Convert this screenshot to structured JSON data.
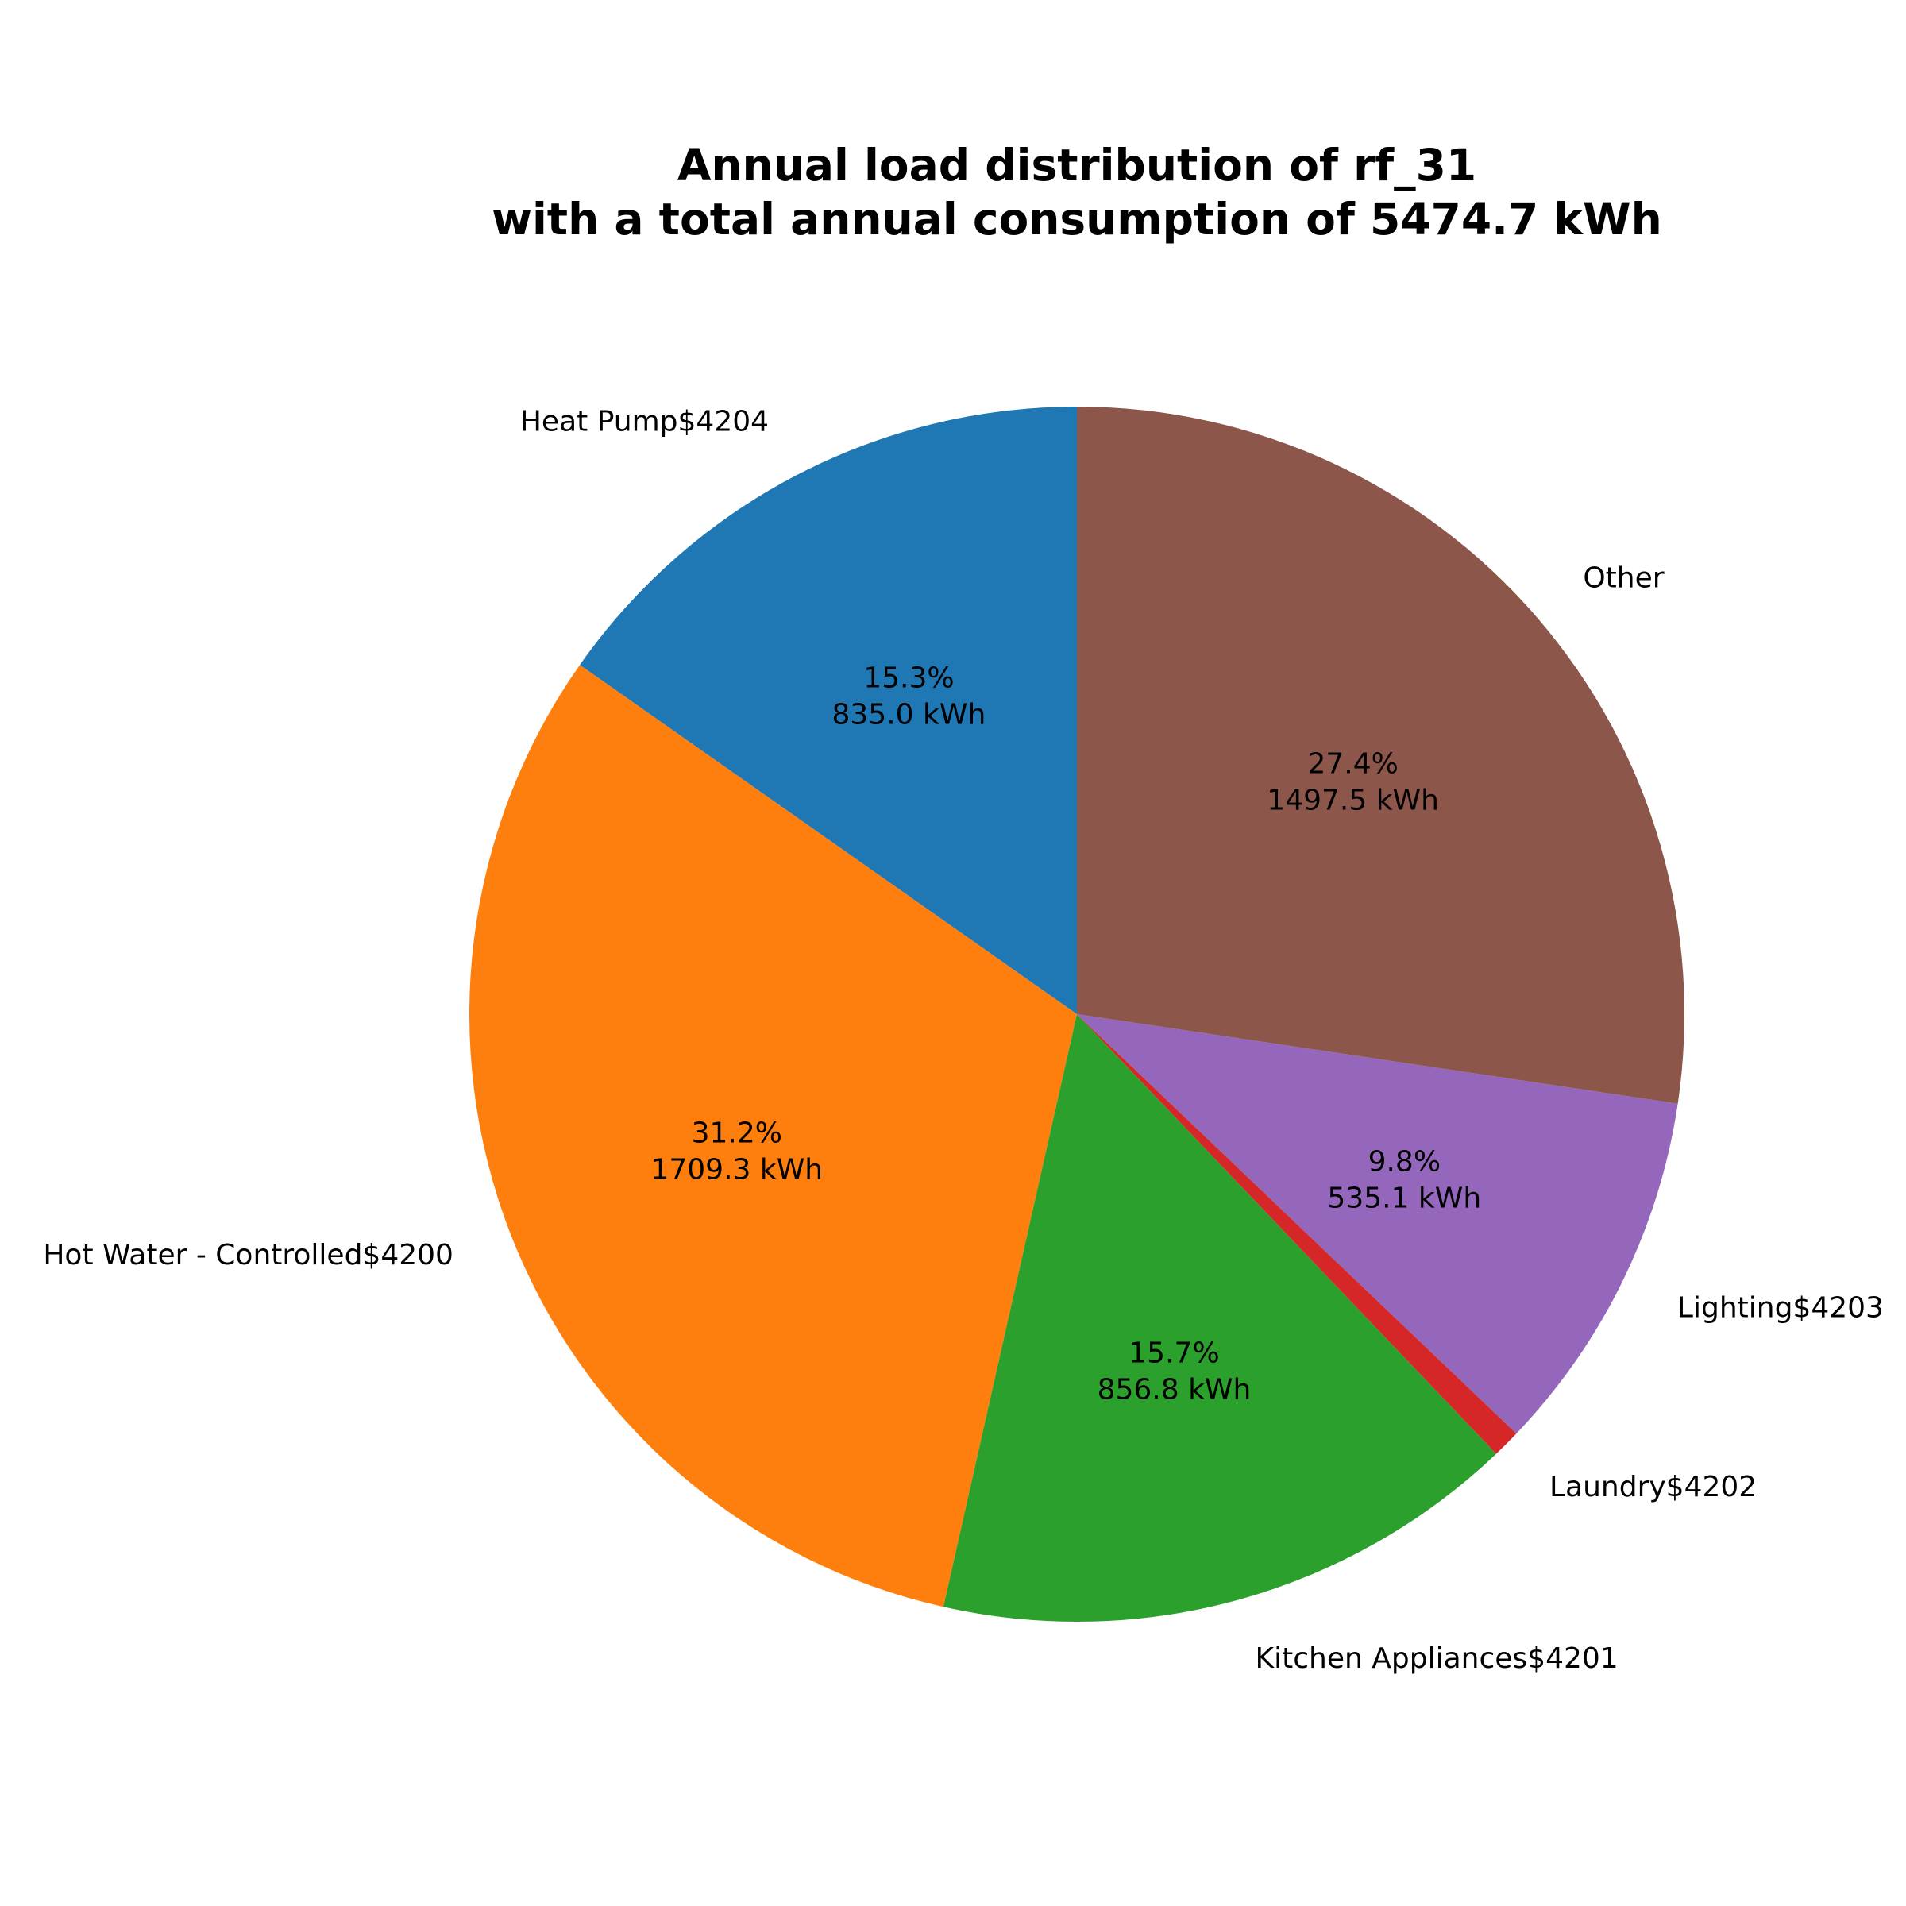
{
  "chart_data": {
    "type": "pie",
    "title": "Annual load distribution of rf_31",
    "subtitle": "with a total annual consumption of 5474.7 kWh",
    "slices": [
      {
        "label": "Heat Pump$4204",
        "percent": 15.3,
        "value": 835.0,
        "pct_text": "15.3%",
        "value_text": "835.0 kWh",
        "color": "#1f77b4"
      },
      {
        "label": "Hot Water - Controlled$4200",
        "percent": 31.2,
        "value": 1709.3,
        "pct_text": "31.2%",
        "value_text": "1709.3 kWh",
        "color": "#ff7f0e"
      },
      {
        "label": "Kitchen Appliances$4201",
        "percent": 15.7,
        "value": 856.8,
        "pct_text": "15.7%",
        "value_text": "856.8 kWh",
        "color": "#2ca02c"
      },
      {
        "label": "Laundry$4202",
        "percent": 0.7,
        "value": 41.0,
        "pct_text": "",
        "value_text": "",
        "color": "#d62728"
      },
      {
        "label": "Lighting$4203",
        "percent": 9.8,
        "value": 535.1,
        "pct_text": "9.8%",
        "value_text": "535.1 kWh",
        "color": "#9467bd"
      },
      {
        "label": "Other",
        "percent": 27.4,
        "value": 1497.5,
        "pct_text": "27.4%",
        "value_text": "1497.5 kWh",
        "color": "#8c564b"
      }
    ]
  }
}
